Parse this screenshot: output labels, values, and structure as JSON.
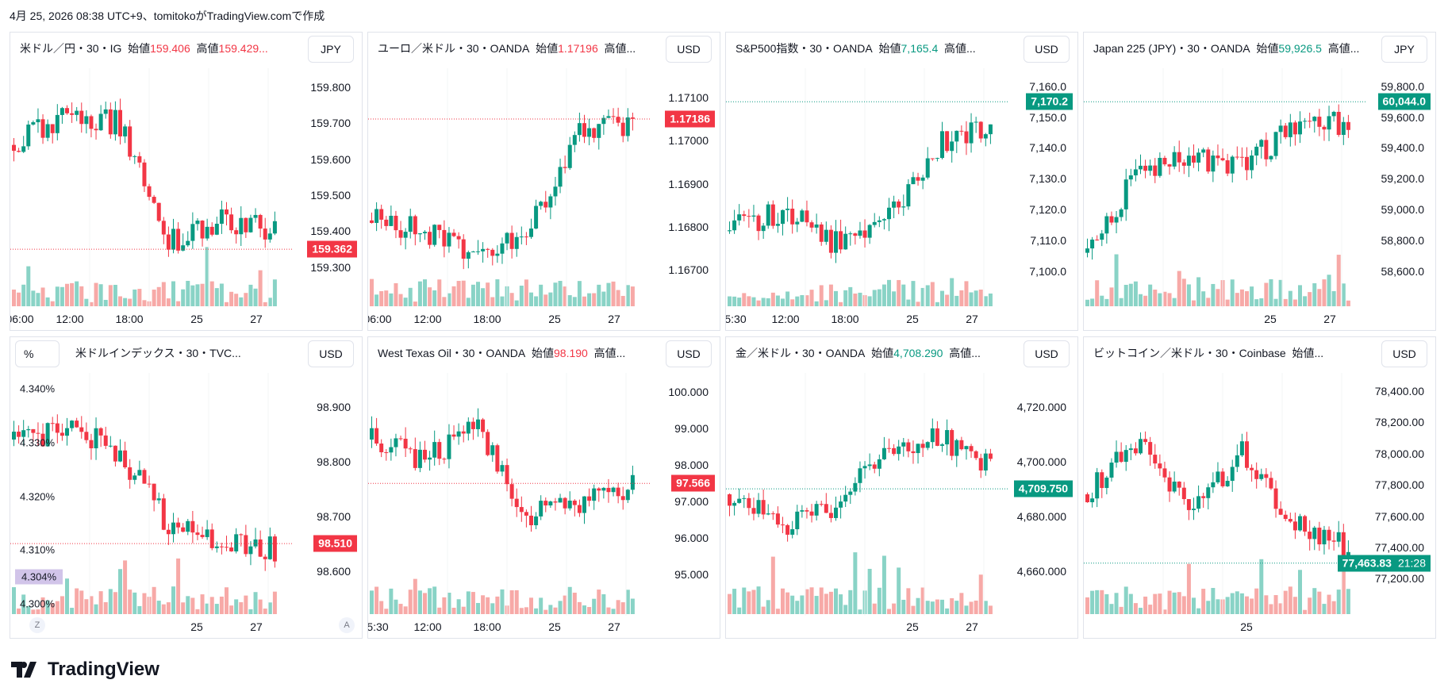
{
  "caption": "4月 25, 2026 08:38 UTC+9、tomitokoがTradingView.comで作成",
  "brand": "TradingView",
  "colors": {
    "up": "#089981",
    "down": "#f23645",
    "pct": "#b39ddb"
  },
  "panels": [
    {
      "symbol": "米ドル／円・30・IG",
      "open_label": "始値",
      "open": "159.406",
      "high_label": "高値",
      "high": "159.429...",
      "open_color": "red",
      "currency": "JPY",
      "axis": [
        "159.800",
        "159.700",
        "159.600",
        "159.500",
        "159.400",
        "159.300"
      ],
      "tag": "159.362",
      "tag_color": "#f23645",
      "tag_pos": 0.74,
      "times": [
        "06:00",
        "12:00",
        "18:00",
        "25",
        "27"
      ],
      "trend": [
        0.3,
        0.15,
        0.2,
        0.75,
        0.65,
        0.7
      ]
    },
    {
      "symbol": "ユーロ／米ドル・30・OANDA",
      "open_label": "始値",
      "open": "1.17196",
      "high_label": "高値...",
      "open_color": "red",
      "currency": "USD",
      "axis": [
        "1.17100",
        "1.17000",
        "1.16900",
        "1.16800",
        "1.16700"
      ],
      "tag": "1.17186",
      "tag_color": "#f23645",
      "tag_pos": 0.19,
      "times": [
        "06:00",
        "12:00",
        "18:00",
        "25",
        "27"
      ],
      "trend": [
        0.65,
        0.7,
        0.8,
        0.7,
        0.25,
        0.2
      ]
    },
    {
      "symbol": "S&P500指数・30・OANDA",
      "open_label": "始値",
      "open": "7,165.4",
      "high_label": "高値...",
      "open_color": "green",
      "currency": "USD",
      "axis": [
        "7,160.0",
        "7,150.0",
        "7,140.0",
        "7,130.0",
        "7,120.0",
        "7,110.0",
        "7,100.0"
      ],
      "tag": "7,170.2",
      "tag_color": "#089981",
      "tag_pos": 0.15,
      "times": [
        "5:30",
        "12:00",
        "18:00",
        "25",
        "27"
      ],
      "trend": [
        0.7,
        0.6,
        0.75,
        0.65,
        0.3,
        0.2
      ]
    },
    {
      "symbol": "Japan 225 (JPY)・30・OANDA",
      "open_label": "始値",
      "open": "59,926.5",
      "high_label": "高値...",
      "open_color": "green",
      "currency": "JPY",
      "axis": [
        "59,800.0",
        "59,600.0",
        "59,400.0",
        "59,200.0",
        "59,000.0",
        "58,800.0",
        "58,600.0"
      ],
      "tag": "60,044.0",
      "tag_color": "#089981",
      "tag_pos": 0.17,
      "times": [
        "25",
        "27"
      ],
      "trend": [
        0.8,
        0.4,
        0.35,
        0.4,
        0.2,
        0.2
      ]
    },
    {
      "symbol": "米ドルインデックス・30・TVC...",
      "currency": "USD",
      "left_unit": "%",
      "left_axis": [
        "4.340%",
        "4.330%",
        "4.320%",
        "4.310%",
        "4.300%"
      ],
      "left_tag": "4.304%",
      "axis": [
        "98.900",
        "98.800",
        "98.700",
        "98.600"
      ],
      "tag": "98.510",
      "tag_color": "#f23645",
      "tag_pos": 0.78,
      "times": [
        "25",
        "27"
      ],
      "btn_z": "Z",
      "btn_a": "A",
      "trend": [
        0.25,
        0.2,
        0.3,
        0.65,
        0.7,
        0.75
      ]
    },
    {
      "symbol": "West Texas Oil・30・OANDA",
      "open_label": "始値",
      "open": "98.190",
      "high_label": "高値...",
      "open_color": "red",
      "currency": "USD",
      "axis": [
        "100.000",
        "99.000",
        "98.000",
        "97.000",
        "96.000",
        "95.000"
      ],
      "tag": "97.566",
      "tag_color": "#f23645",
      "tag_pos": 0.53,
      "times": [
        "5:30",
        "12:00",
        "18:00",
        "25",
        "27"
      ],
      "trend": [
        0.25,
        0.35,
        0.2,
        0.6,
        0.55,
        0.45
      ]
    },
    {
      "symbol": "金／米ドル・30・OANDA",
      "open_label": "始値",
      "open": "4,708.290",
      "high_label": "高値...",
      "open_color": "green",
      "currency": "USD",
      "axis": [
        "4,720.000",
        "4,700.000",
        "4,680.000",
        "4,660.000"
      ],
      "tag": "4,709.750",
      "tag_color": "#089981",
      "tag_pos": 0.4,
      "times": [
        "25",
        "27"
      ],
      "trend": [
        0.5,
        0.65,
        0.55,
        0.3,
        0.25,
        0.35
      ]
    },
    {
      "symbol": "ビットコイン／米ドル・30・Coinbase",
      "open_label": "始値...",
      "currency": "USD",
      "axis": [
        "78,400.00",
        "78,200.00",
        "78,000.00",
        "77,800.00",
        "77,600.00",
        "77,400.00",
        "77,200.00"
      ],
      "tag": "77,463.83",
      "tag2": "21:28",
      "tag_color": "#089981",
      "tag_pos": 0.81,
      "times": [
        "25"
      ],
      "trend": [
        0.5,
        0.25,
        0.6,
        0.3,
        0.65,
        0.75
      ]
    }
  ]
}
